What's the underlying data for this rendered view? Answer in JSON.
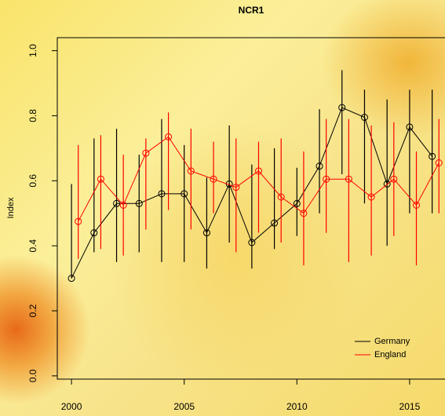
{
  "chart_data": {
    "type": "line",
    "title": "NCR1",
    "y_label": "Index",
    "xlim": [
      1999.37,
      2016.57
    ],
    "xticks": [
      2000,
      2005,
      2010,
      2015
    ],
    "ylim": [
      -0.01,
      1.04
    ],
    "yticks": [
      {
        "value": 0,
        "label": "0.0"
      },
      0.2,
      0.4,
      0.6,
      0.8,
      {
        "value": 1,
        "label": "1.0"
      }
    ],
    "legend": "bottom-right",
    "series": [
      {
        "name": "Germany",
        "color": "#000000",
        "x": [
          2000,
          2001,
          2002,
          2003,
          2004,
          2005,
          2006,
          2007,
          2008,
          2009,
          2010,
          2011,
          2012,
          2013,
          2014,
          2015,
          2016
        ],
        "values": [
          0.3,
          0.44,
          0.53,
          0.53,
          0.56,
          0.56,
          0.44,
          0.59,
          0.41,
          0.47,
          0.53,
          0.645,
          0.825,
          0.795,
          0.59,
          0.765,
          0.675
        ],
        "lower": [
          0.3,
          0.38,
          0.35,
          0.38,
          0.35,
          0.35,
          0.33,
          0.41,
          0.33,
          0.39,
          0.43,
          0.5,
          0.62,
          0.53,
          0.4,
          0.5,
          0.5
        ],
        "upper": [
          0.59,
          0.73,
          0.76,
          0.68,
          0.79,
          0.71,
          0.61,
          0.77,
          0.65,
          0.7,
          0.64,
          0.82,
          0.94,
          0.88,
          0.85,
          0.88,
          0.88
        ]
      },
      {
        "name": "England",
        "color": "#ff0000",
        "x": [
          2000.3,
          2001.3,
          2002.3,
          2003.3,
          2004.3,
          2005.3,
          2006.3,
          2007.3,
          2008.3,
          2009.3,
          2010.3,
          2011.3,
          2012.3,
          2013.3,
          2014.3,
          2015.3,
          2016.3
        ],
        "values": [
          0.475,
          0.605,
          0.525,
          0.685,
          0.735,
          0.63,
          0.605,
          0.58,
          0.63,
          0.55,
          0.5,
          0.605,
          0.605,
          0.55,
          0.605,
          0.525,
          0.655
        ],
        "lower": [
          0.36,
          0.39,
          0.37,
          0.45,
          0.51,
          0.45,
          0.5,
          0.38,
          0.44,
          0.41,
          0.34,
          0.44,
          0.35,
          0.37,
          0.43,
          0.34,
          0.5
        ],
        "upper": [
          0.71,
          0.74,
          0.68,
          0.73,
          0.81,
          0.76,
          0.72,
          0.73,
          0.72,
          0.73,
          0.69,
          0.79,
          0.79,
          0.77,
          0.78,
          0.69,
          0.79
        ]
      }
    ]
  }
}
